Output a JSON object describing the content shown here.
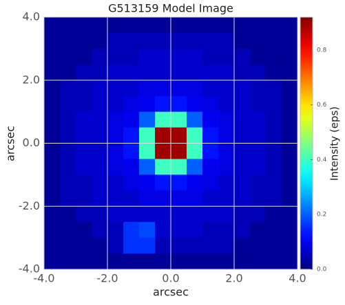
{
  "chart_data": {
    "type": "heatmap",
    "title": "G513159 Model Image",
    "xlabel": "arcsec",
    "ylabel": "arcsec",
    "colorbar_label": "Intensity (eps)",
    "colormap": "jet",
    "grid": true,
    "xlim": [
      -4,
      4
    ],
    "ylim": [
      -4,
      4
    ],
    "clim": [
      0,
      0.92
    ],
    "xticks": [
      {
        "value": -4,
        "label": "-4.0"
      },
      {
        "value": -2,
        "label": "-2.0"
      },
      {
        "value": 0,
        "label": "0.0"
      },
      {
        "value": 2,
        "label": "2.0"
      },
      {
        "value": 4,
        "label": "4.0"
      }
    ],
    "yticks": [
      {
        "value": -4,
        "label": "-4.0"
      },
      {
        "value": -2,
        "label": "-2.0"
      },
      {
        "value": 0,
        "label": "0.0"
      },
      {
        "value": 2,
        "label": "2.0"
      },
      {
        "value": 4,
        "label": "4.0"
      }
    ],
    "cticks": [
      {
        "value": 0,
        "label": "0.0"
      },
      0.2,
      0.4,
      0.6,
      0.8
    ],
    "z": [
      [
        0.02,
        0.02,
        0.02,
        0.02,
        0.02,
        0.02,
        0.02,
        0.02,
        0.02,
        0.02,
        0.02,
        0.02,
        0.02,
        0.02,
        0.02,
        0.02
      ],
      [
        0.02,
        0.02,
        0.02,
        0.02,
        0.05,
        0.05,
        0.05,
        0.05,
        0.05,
        0.05,
        0.05,
        0.05,
        0.02,
        0.02,
        0.02,
        0.02
      ],
      [
        0.02,
        0.02,
        0.02,
        0.05,
        0.05,
        0.05,
        0.07,
        0.07,
        0.07,
        0.07,
        0.05,
        0.05,
        0.05,
        0.02,
        0.02,
        0.02
      ],
      [
        0.02,
        0.02,
        0.05,
        0.05,
        0.07,
        0.07,
        0.07,
        0.07,
        0.07,
        0.07,
        0.07,
        0.07,
        0.05,
        0.05,
        0.02,
        0.02
      ],
      [
        0.02,
        0.05,
        0.05,
        0.07,
        0.07,
        0.07,
        0.09,
        0.09,
        0.09,
        0.09,
        0.07,
        0.07,
        0.07,
        0.05,
        0.05,
        0.02
      ],
      [
        0.02,
        0.05,
        0.05,
        0.07,
        0.07,
        0.09,
        0.1,
        0.13,
        0.13,
        0.1,
        0.09,
        0.07,
        0.07,
        0.05,
        0.05,
        0.02
      ],
      [
        0.02,
        0.05,
        0.07,
        0.07,
        0.09,
        0.1,
        0.2,
        0.4,
        0.4,
        0.2,
        0.1,
        0.09,
        0.07,
        0.07,
        0.05,
        0.02
      ],
      [
        0.02,
        0.05,
        0.07,
        0.07,
        0.09,
        0.13,
        0.4,
        0.89,
        0.89,
        0.4,
        0.13,
        0.09,
        0.07,
        0.07,
        0.05,
        0.02
      ],
      [
        0.02,
        0.05,
        0.07,
        0.07,
        0.09,
        0.13,
        0.4,
        0.89,
        0.89,
        0.4,
        0.13,
        0.09,
        0.07,
        0.07,
        0.05,
        0.02
      ],
      [
        0.02,
        0.05,
        0.07,
        0.07,
        0.09,
        0.1,
        0.2,
        0.4,
        0.4,
        0.2,
        0.1,
        0.09,
        0.07,
        0.07,
        0.05,
        0.02
      ],
      [
        0.02,
        0.05,
        0.05,
        0.07,
        0.07,
        0.09,
        0.1,
        0.13,
        0.13,
        0.1,
        0.09,
        0.07,
        0.07,
        0.05,
        0.05,
        0.02
      ],
      [
        0.02,
        0.05,
        0.05,
        0.07,
        0.07,
        0.07,
        0.09,
        0.09,
        0.09,
        0.09,
        0.07,
        0.07,
        0.07,
        0.05,
        0.05,
        0.02
      ],
      [
        0.02,
        0.02,
        0.05,
        0.05,
        0.07,
        0.07,
        0.07,
        0.07,
        0.07,
        0.07,
        0.07,
        0.07,
        0.05,
        0.05,
        0.02,
        0.02
      ],
      [
        0.02,
        0.02,
        0.02,
        0.05,
        0.05,
        0.16,
        0.18,
        0.07,
        0.07,
        0.07,
        0.05,
        0.05,
        0.05,
        0.02,
        0.02,
        0.02
      ],
      [
        0.02,
        0.02,
        0.02,
        0.02,
        0.05,
        0.16,
        0.16,
        0.05,
        0.05,
        0.05,
        0.05,
        0.05,
        0.02,
        0.02,
        0.02,
        0.02
      ],
      [
        0.02,
        0.02,
        0.02,
        0.02,
        0.02,
        0.02,
        0.02,
        0.02,
        0.02,
        0.02,
        0.02,
        0.02,
        0.02,
        0.02,
        0.02,
        0.02
      ]
    ]
  }
}
